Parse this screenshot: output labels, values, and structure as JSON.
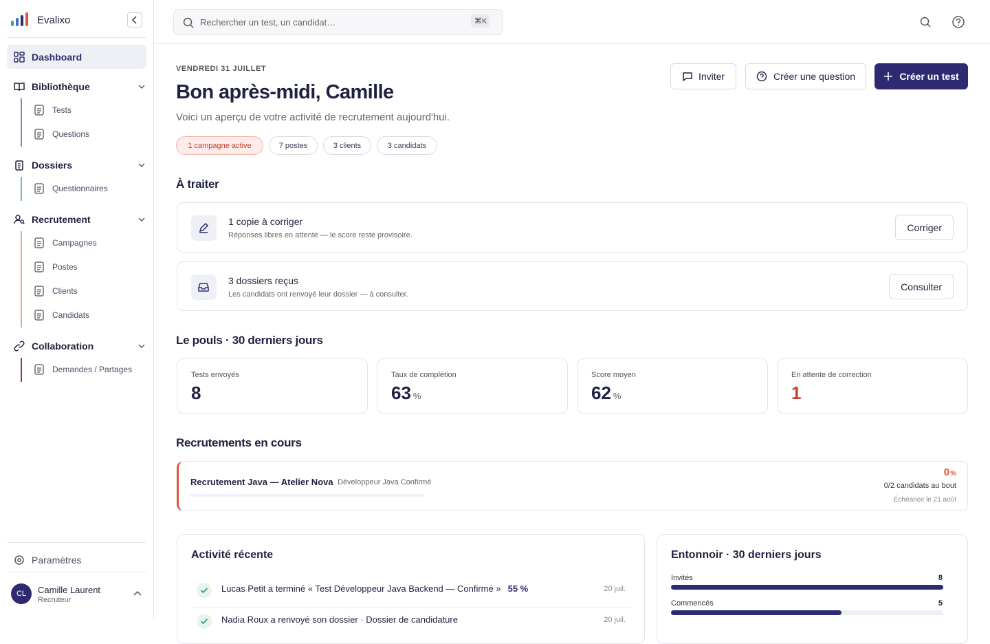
{
  "sidebar": {
    "brand": "Evalixo",
    "dashboard": "Dashboard",
    "groups": [
      {
        "label": "Bibliothèque",
        "items": [
          "Tests",
          "Questions"
        ]
      },
      {
        "label": "Dossiers",
        "items": [
          "Questionnaires"
        ]
      },
      {
        "label": "Recrutement",
        "items": [
          "Campagnes",
          "Postes",
          "Clients",
          "Candidats"
        ]
      },
      {
        "label": "Collaboration",
        "items": [
          "Demandes / Partages"
        ]
      }
    ],
    "settings": "Paramètres",
    "user": {
      "initials": "CL",
      "name": "Camille Laurent",
      "role": "Recruteur"
    }
  },
  "topbar": {
    "search_placeholder": "Rechercher un test, un candidat…",
    "shortcut": "⌘K"
  },
  "header": {
    "date": "VENDREDI 31 JUILLET",
    "title": "Bon après-midi, Camille",
    "subtitle": "Voici un aperçu de votre activité de recrutement aujourd'hui.",
    "chips": [
      "1 campagne active",
      "7 postes",
      "3 clients",
      "3 candidats"
    ],
    "buttons": [
      "Inviter",
      "Créer une question",
      "Créer un test"
    ]
  },
  "todo": {
    "title": "À traiter",
    "items": [
      {
        "title": "1 copie à corriger",
        "description": "Réponses libres en attente — le score reste provisoire.",
        "action": "Corriger"
      },
      {
        "title": "3 dossiers reçus",
        "description": "Les candidats ont renvoyé leur dossier — à consulter.",
        "action": "Consulter"
      }
    ]
  },
  "pulse": {
    "title": "Le pouls · 30 derniers jours",
    "stats": [
      {
        "label": "Tests envoyés",
        "value": 8
      },
      {
        "label": "Taux de complétion",
        "value": 63,
        "unit": "%"
      },
      {
        "label": "Score moyen",
        "value": 62,
        "unit": "%"
      },
      {
        "label": "En attente de correction",
        "value": 1
      }
    ]
  },
  "recruitments": {
    "title": "Recrutements en cours",
    "items": [
      {
        "title": "Recrutement Java — Atelier Nova",
        "position": "Développeur Java Confirmé",
        "progress": 0,
        "unit": "%",
        "candidates": "0/2 candidats au bout",
        "deadline": "Échéance le 21 août"
      }
    ]
  },
  "activity": {
    "title": "Activité récente",
    "items": [
      {
        "text": "Lucas Petit a terminé « Test Développeur Java Backend — Confirmé »",
        "score": "55 %",
        "date": "20 juil."
      },
      {
        "text": "Nadia Roux a renvoyé son dossier · Dossier de candidature",
        "date": "20 juil."
      }
    ]
  },
  "funnel": {
    "title": "Entonnoir · 30 derniers jours",
    "items": [
      {
        "label": "Invités",
        "value": 8
      },
      {
        "label": "Commencés",
        "value": 5
      }
    ]
  }
}
